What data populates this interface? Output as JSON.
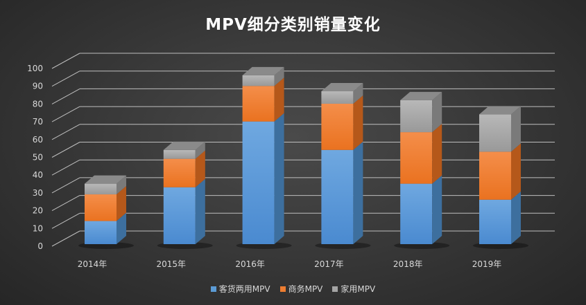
{
  "chart_data": {
    "type": "bar",
    "subtype": "3d-stacked",
    "title": "MPV细分类别销量变化",
    "categories": [
      "2014年",
      "2015年",
      "2016年",
      "2017年",
      "2018年",
      "2019年"
    ],
    "series": [
      {
        "name": "客货两用MPV",
        "color": "#5b9bd5",
        "values": [
          13,
          32,
          69,
          53,
          34,
          25
        ]
      },
      {
        "name": "商务MPV",
        "color": "#ed7d31",
        "values": [
          15,
          16,
          20,
          26,
          29,
          27
        ]
      },
      {
        "name": "家用MPV",
        "color": "#a5a5a5",
        "values": [
          6,
          5,
          6,
          7,
          18,
          21
        ]
      }
    ],
    "ylim": [
      0,
      100
    ],
    "yticks": [
      0,
      10,
      20,
      30,
      40,
      50,
      60,
      70,
      80,
      90,
      100
    ],
    "grid": true,
    "legend": "bottom",
    "xlabel": "",
    "ylabel": ""
  }
}
